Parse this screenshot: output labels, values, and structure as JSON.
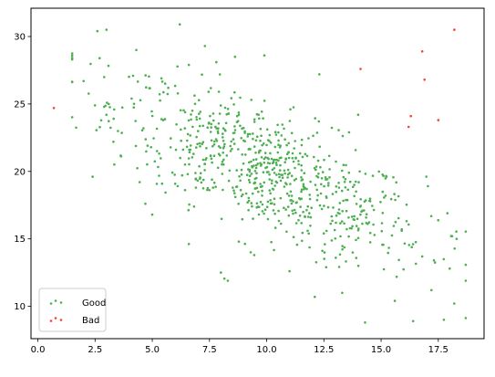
{
  "chart_data": {
    "type": "scatter",
    "title": "",
    "xlabel": "",
    "ylabel": "",
    "xlim": [
      -0.3,
      19.5
    ],
    "ylim": [
      7.6,
      32.1
    ],
    "xticks": [
      0,
      2.5,
      5,
      7.5,
      10,
      12.5,
      15,
      17.5
    ],
    "xtick_labels": [
      "0.0",
      "2.5",
      "5.0",
      "7.5",
      "10.0",
      "12.5",
      "15.0",
      "17.5"
    ],
    "yticks": [
      10,
      15,
      20,
      25,
      30
    ],
    "ytick_labels": [
      "10",
      "15",
      "20",
      "25",
      "30"
    ],
    "grid": false,
    "legend_position": "lower-left",
    "legend": [
      {
        "label": "Good",
        "color": "#4caf50"
      },
      {
        "label": "Bad",
        "color": "#f44336"
      }
    ],
    "series": [
      {
        "name": "Good",
        "color": "#4caf50",
        "approx_count": 800,
        "cluster_trend": {
          "x_range": [
            1.5,
            18.7
          ],
          "mean_x": 10.1,
          "mean_y": 19.9,
          "slope": -0.72,
          "x_sd": 3.4,
          "y_residual_sd": 2.3
        },
        "points": [
          [
            1.5,
            28.3
          ],
          [
            2.0,
            26.7
          ],
          [
            2.6,
            30.4
          ],
          [
            3.0,
            30.5
          ],
          [
            2.7,
            28.4
          ],
          [
            2.9,
            27.0
          ],
          [
            4.3,
            29.0
          ],
          [
            3.3,
            22.2
          ],
          [
            3.5,
            23.0
          ],
          [
            4.7,
            17.6
          ],
          [
            5.0,
            16.8
          ],
          [
            5.4,
            26.9
          ],
          [
            6.2,
            30.9
          ],
          [
            7.3,
            29.3
          ],
          [
            7.8,
            28.1
          ],
          [
            8.0,
            12.5
          ],
          [
            8.3,
            11.9
          ],
          [
            9.9,
            28.6
          ],
          [
            12.3,
            27.2
          ],
          [
            12.1,
            10.7
          ],
          [
            13.3,
            11.0
          ],
          [
            14.3,
            8.8
          ],
          [
            16.4,
            8.9
          ],
          [
            18.1,
            15.2
          ],
          [
            18.7,
            11.9
          ],
          [
            18.3,
            15.0
          ],
          [
            17.9,
            16.9
          ],
          [
            16.8,
            13.7
          ],
          [
            18.0,
            12.8
          ],
          [
            15.6,
            10.4
          ],
          [
            17.2,
            11.2
          ],
          [
            14.0,
            24.2
          ],
          [
            13.6,
            22.9
          ],
          [
            4.1,
            25.4
          ],
          [
            3.1,
            25.0
          ],
          [
            2.9,
            24.8
          ],
          [
            5.7,
            26.2
          ],
          [
            6.6,
            27.9
          ],
          [
            9.3,
            14.0
          ],
          [
            11.0,
            12.6
          ],
          [
            12.6,
            12.9
          ]
        ]
      },
      {
        "name": "Bad",
        "color": "#f44336",
        "points": [
          [
            0.7,
            24.7
          ],
          [
            14.1,
            27.6
          ],
          [
            16.8,
            28.9
          ],
          [
            16.9,
            26.8
          ],
          [
            18.2,
            30.5
          ],
          [
            16.3,
            24.1
          ],
          [
            16.2,
            23.3
          ],
          [
            17.5,
            23.8
          ]
        ]
      }
    ]
  }
}
